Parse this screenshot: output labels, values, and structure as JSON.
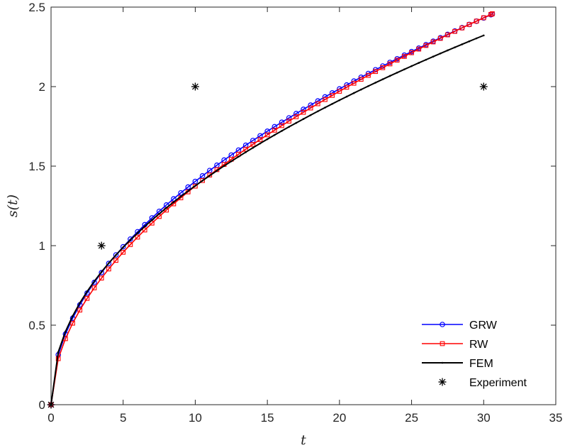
{
  "chart_data": {
    "type": "line",
    "title": "",
    "xlabel": "t",
    "ylabel": "s(t)",
    "xlim": [
      0,
      35
    ],
    "ylim": [
      0,
      2.5
    ],
    "xticks": [
      0,
      5,
      10,
      15,
      20,
      25,
      30,
      35
    ],
    "yticks": [
      0,
      0.5,
      1,
      1.5,
      2,
      2.5
    ],
    "xtick_labels": [
      "0",
      "5",
      "10",
      "15",
      "20",
      "25",
      "30",
      "35"
    ],
    "ytick_labels": [
      "0",
      "0.5",
      "1",
      "1.5",
      "2",
      "2.5"
    ],
    "grid": false,
    "legend_position": "bottom-right",
    "series": [
      {
        "name": "GRW",
        "color": "#0000ff",
        "marker": "circle",
        "model": "power",
        "coef": 0.444,
        "exponent": 0.5,
        "x_range": [
          0,
          30.6
        ],
        "x_step": 0.5,
        "points": [
          [
            0,
            0
          ],
          [
            0.5,
            0.31
          ],
          [
            1,
            0.444
          ],
          [
            5,
            0.993
          ],
          [
            10,
            1.404
          ],
          [
            20,
            1.986
          ],
          [
            30.6,
            2.46
          ]
        ]
      },
      {
        "name": "RW",
        "color": "#ff0000",
        "marker": "square",
        "model": "power",
        "coef": 0.415,
        "exponent": 0.52,
        "x_range": [
          0,
          30.6
        ],
        "x_step": 0.5,
        "points": [
          [
            0,
            0
          ],
          [
            0.5,
            0.29
          ],
          [
            1,
            0.415
          ],
          [
            5,
            0.96
          ],
          [
            10,
            1.38
          ],
          [
            20,
            1.98
          ],
          [
            30.6,
            2.43
          ]
        ]
      },
      {
        "name": "FEM",
        "color": "#000000",
        "marker": "dot",
        "model": "power",
        "coef": 0.46,
        "exponent": 0.476,
        "x_range": [
          0,
          30
        ],
        "x_step": 0.5,
        "points": [
          [
            0,
            0
          ],
          [
            1,
            0.46
          ],
          [
            5,
            1.0
          ],
          [
            10,
            1.38
          ],
          [
            20,
            1.92
          ],
          [
            30,
            2.32
          ]
        ]
      },
      {
        "name": "Experiment",
        "color": "#000000",
        "marker": "asterisk",
        "line": false,
        "points": [
          [
            0,
            0
          ],
          [
            3.5,
            1.0
          ],
          [
            10,
            2.0
          ],
          [
            30,
            2.0
          ]
        ]
      }
    ]
  }
}
